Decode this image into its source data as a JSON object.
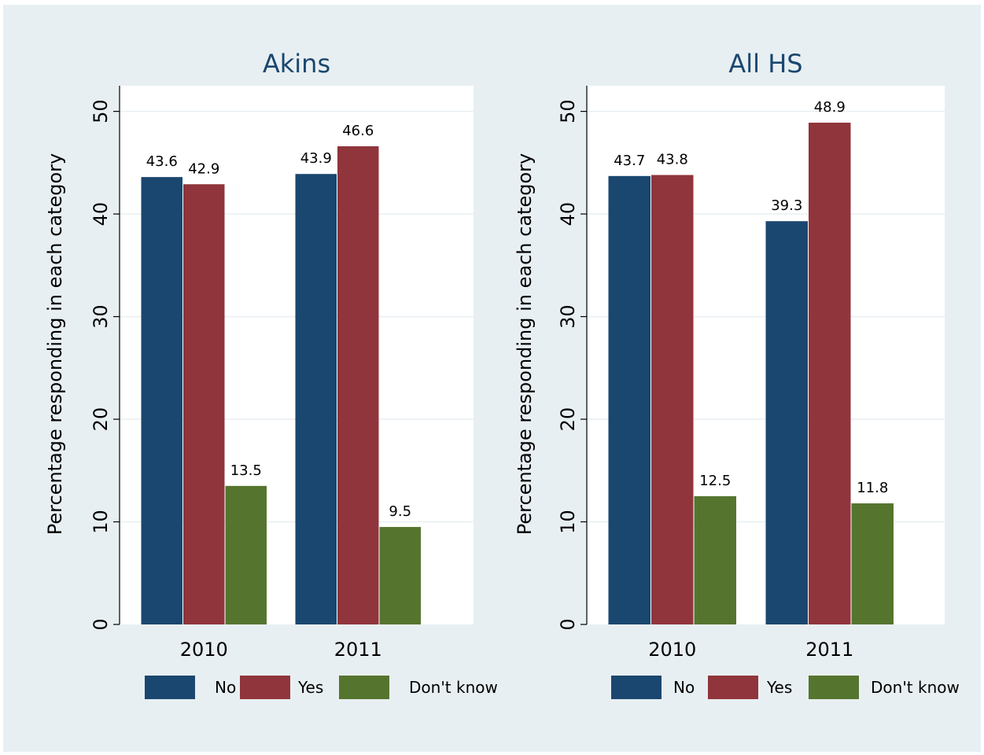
{
  "chart_data": [
    {
      "type": "bar",
      "title": "Akins",
      "ylabel": "Percentage responding in each category",
      "xlabel": "",
      "categories": [
        "2010",
        "2011"
      ],
      "ylim": [
        0,
        50
      ],
      "yticks": [
        "0",
        "10",
        "20",
        "30",
        "40",
        "50"
      ],
      "grid": true,
      "legend_position": "bottom",
      "series": [
        {
          "name": "No",
          "color": "#1a476f",
          "values": [
            43.6,
            43.9
          ],
          "labels": [
            "43.6",
            "43.9"
          ]
        },
        {
          "name": "Yes",
          "color": "#90353b",
          "values": [
            42.9,
            46.6
          ],
          "labels": [
            "42.9",
            "46.6"
          ]
        },
        {
          "name": "Don't know",
          "color": "#55752f",
          "values": [
            13.5,
            9.5
          ],
          "labels": [
            "13.5",
            "9.5"
          ]
        }
      ]
    },
    {
      "type": "bar",
      "title": "All HS",
      "ylabel": "Percentage responding in each category",
      "xlabel": "",
      "categories": [
        "2010",
        "2011"
      ],
      "ylim": [
        0,
        50
      ],
      "yticks": [
        "0",
        "10",
        "20",
        "30",
        "40",
        "50"
      ],
      "grid": true,
      "legend_position": "bottom",
      "series": [
        {
          "name": "No",
          "color": "#1a476f",
          "values": [
            43.7,
            39.3
          ],
          "labels": [
            "43.7",
            "39.3"
          ]
        },
        {
          "name": "Yes",
          "color": "#90353b",
          "values": [
            43.8,
            48.9
          ],
          "labels": [
            "43.8",
            "48.9"
          ]
        },
        {
          "name": "Don't know",
          "color": "#55752f",
          "values": [
            12.5,
            11.8
          ],
          "labels": [
            "12.5",
            "11.8"
          ]
        }
      ]
    }
  ],
  "colors": {
    "figure_background": "#e8eff2",
    "plot_background": "#ffffff",
    "gridline": "#e8eff2",
    "title": "#1a476f",
    "text": "#000000"
  }
}
